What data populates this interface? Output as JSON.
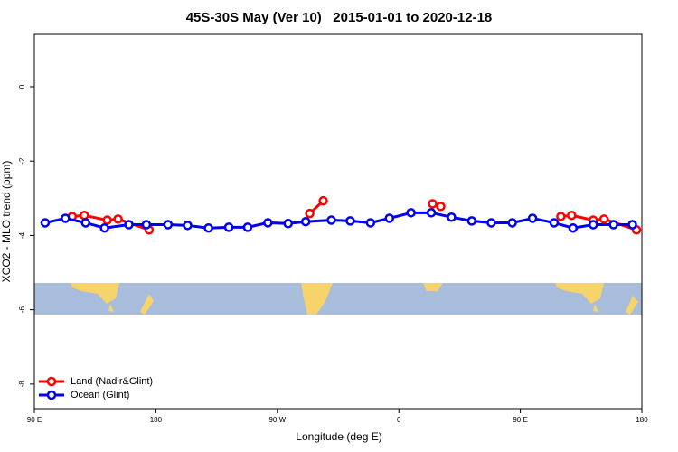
{
  "chart_data": {
    "type": "line",
    "title": "45S-30S May (Ver 10)   2015-01-01 to 2020-12-18",
    "x_label": "Longitude (deg E)",
    "y_label": "XCO2 - MLO trend (ppm)",
    "xlim": [
      90,
      540
    ],
    "xticks": [
      {
        "value": 90,
        "label": "90 E"
      },
      180,
      {
        "value": 270,
        "label": "90 W"
      },
      {
        "value": 360,
        "label": "0"
      },
      {
        "value": 450,
        "label": "90 E"
      },
      {
        "value": 540,
        "label": "180"
      }
    ],
    "ylim": [
      -8.66,
      1.41
    ],
    "yticks": [
      0,
      -2,
      -4,
      -6,
      -8
    ],
    "legend": "bottom-left",
    "series": [
      {
        "name": "Land (Nadir&Glint)",
        "color": "#ff0000",
        "x": [
          118,
          127,
          144,
          152,
          175,
          null,
          294,
          304,
          null,
          385,
          391,
          null,
          480,
          488,
          504,
          512,
          536
        ],
        "values": [
          -3.49,
          -3.46,
          -3.59,
          -3.56,
          -3.85,
          null,
          -3.41,
          -3.07,
          null,
          -3.15,
          -3.22,
          null,
          -3.49,
          -3.46,
          -3.59,
          -3.56,
          -3.85
        ]
      },
      {
        "name": "Ocean (Glint)",
        "color": "#0000ee",
        "x": [
          98,
          113,
          128,
          142,
          160,
          173,
          189,
          203.5,
          219,
          234,
          248,
          263,
          278,
          291,
          310,
          324,
          339,
          353,
          369,
          384,
          399,
          414,
          428.5,
          444,
          459,
          475,
          489,
          504,
          519,
          533
        ],
        "values": [
          -3.66,
          -3.54,
          -3.66,
          -3.8,
          -3.71,
          -3.71,
          -3.71,
          -3.73,
          -3.8,
          -3.78,
          -3.78,
          -3.66,
          -3.68,
          -3.63,
          -3.59,
          -3.61,
          -3.66,
          -3.54,
          -3.39,
          -3.39,
          -3.51,
          -3.61,
          -3.66,
          -3.66,
          -3.54,
          -3.66,
          -3.8,
          -3.71,
          -3.71,
          -3.71
        ]
      }
    ]
  }
}
